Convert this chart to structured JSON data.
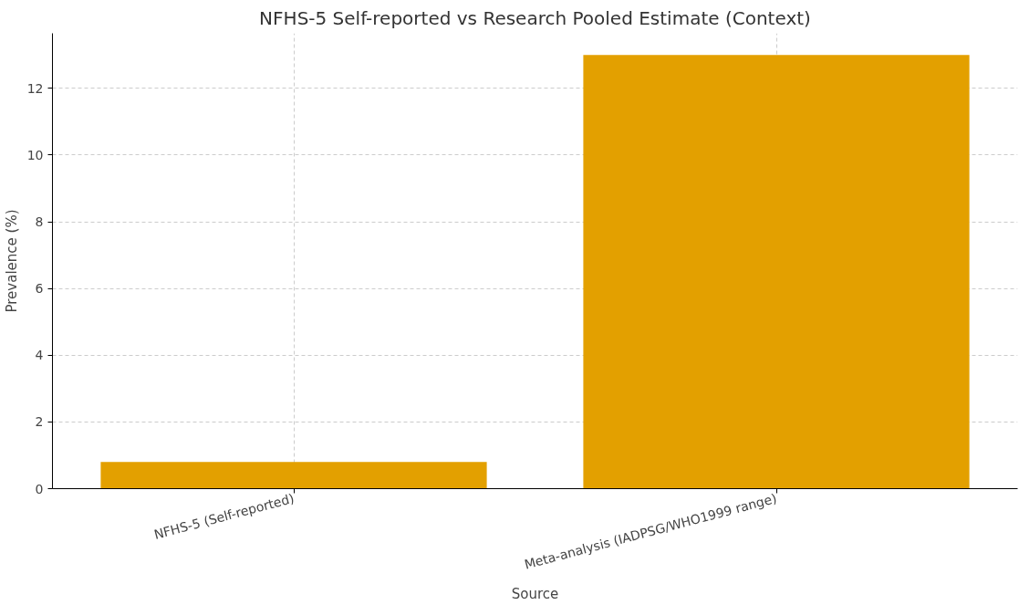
{
  "chart_data": {
    "type": "bar",
    "title": "NFHS-5 Self-reported vs Research Pooled Estimate (Context)",
    "xlabel": "Source",
    "ylabel": "Prevalence (%)",
    "categories": [
      "NFHS-5 (Self-reported)",
      "Meta-analysis (IADPSG/WHO1999 range)"
    ],
    "values": [
      0.8,
      13.0
    ],
    "color": "#e3a000",
    "ylim": [
      0,
      13.65
    ],
    "yticks": [
      0,
      2,
      4,
      6,
      8,
      10,
      12
    ],
    "grid": true
  }
}
